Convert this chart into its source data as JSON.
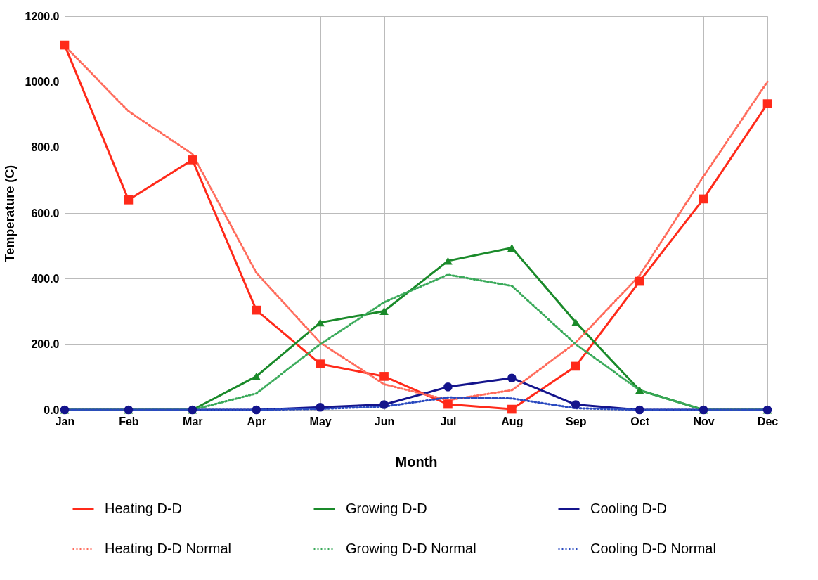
{
  "chart_data": {
    "type": "line",
    "xlabel": "Month",
    "ylabel": "Temperature (C)",
    "categories": [
      "Jan",
      "Feb",
      "Mar",
      "Apr",
      "May",
      "Jun",
      "Jul",
      "Aug",
      "Sep",
      "Oct",
      "Nov",
      "Dec"
    ],
    "ylim": [
      0,
      1200
    ],
    "yticks": [
      {
        "value": 0,
        "label": "0.0"
      },
      {
        "value": 200,
        "label": "200.0"
      },
      {
        "value": 400,
        "label": "400.0"
      },
      {
        "value": 600,
        "label": "600.0"
      },
      {
        "value": 800,
        "label": "800.0"
      },
      {
        "value": 1000,
        "label": "1000.0"
      },
      {
        "value": 1200,
        "label": "1200.0"
      }
    ],
    "grid": true,
    "legend": "bottom",
    "series": [
      {
        "name": "Heating D-D",
        "color": "#ff2a1a",
        "marker": "square",
        "line_style": "solid",
        "values": [
          1112,
          640,
          762,
          304,
          140,
          102,
          17,
          2,
          133,
          392,
          643,
          933
        ]
      },
      {
        "name": "Growing D-D",
        "color": "#1a8a2a",
        "marker": "triangle",
        "line_style": "solid",
        "values": [
          0,
          0,
          0,
          102,
          266,
          301,
          454,
          494,
          267,
          60,
          0,
          0
        ]
      },
      {
        "name": "Cooling D-D",
        "color": "#14148c",
        "marker": "circle",
        "line_style": "solid",
        "values": [
          0,
          0,
          0,
          0,
          8,
          16,
          70,
          97,
          16,
          0,
          0,
          0
        ]
      },
      {
        "name": "Heating D-D Normal",
        "color": "#ff6a5a",
        "marker": "none",
        "line_style": "dotted",
        "values": [
          1110,
          910,
          780,
          418,
          205,
          78,
          30,
          60,
          205,
          410,
          712,
          1000
        ]
      },
      {
        "name": "Growing D-D Normal",
        "color": "#3aaa5a",
        "marker": "none",
        "line_style": "dotted",
        "values": [
          0,
          0,
          0,
          50,
          200,
          328,
          412,
          378,
          200,
          60,
          0,
          0
        ]
      },
      {
        "name": "Cooling D-D Normal",
        "color": "#2a4ac0",
        "marker": "none",
        "line_style": "dotted",
        "values": [
          0,
          0,
          0,
          0,
          3,
          10,
          38,
          35,
          5,
          0,
          0,
          0
        ]
      }
    ]
  }
}
